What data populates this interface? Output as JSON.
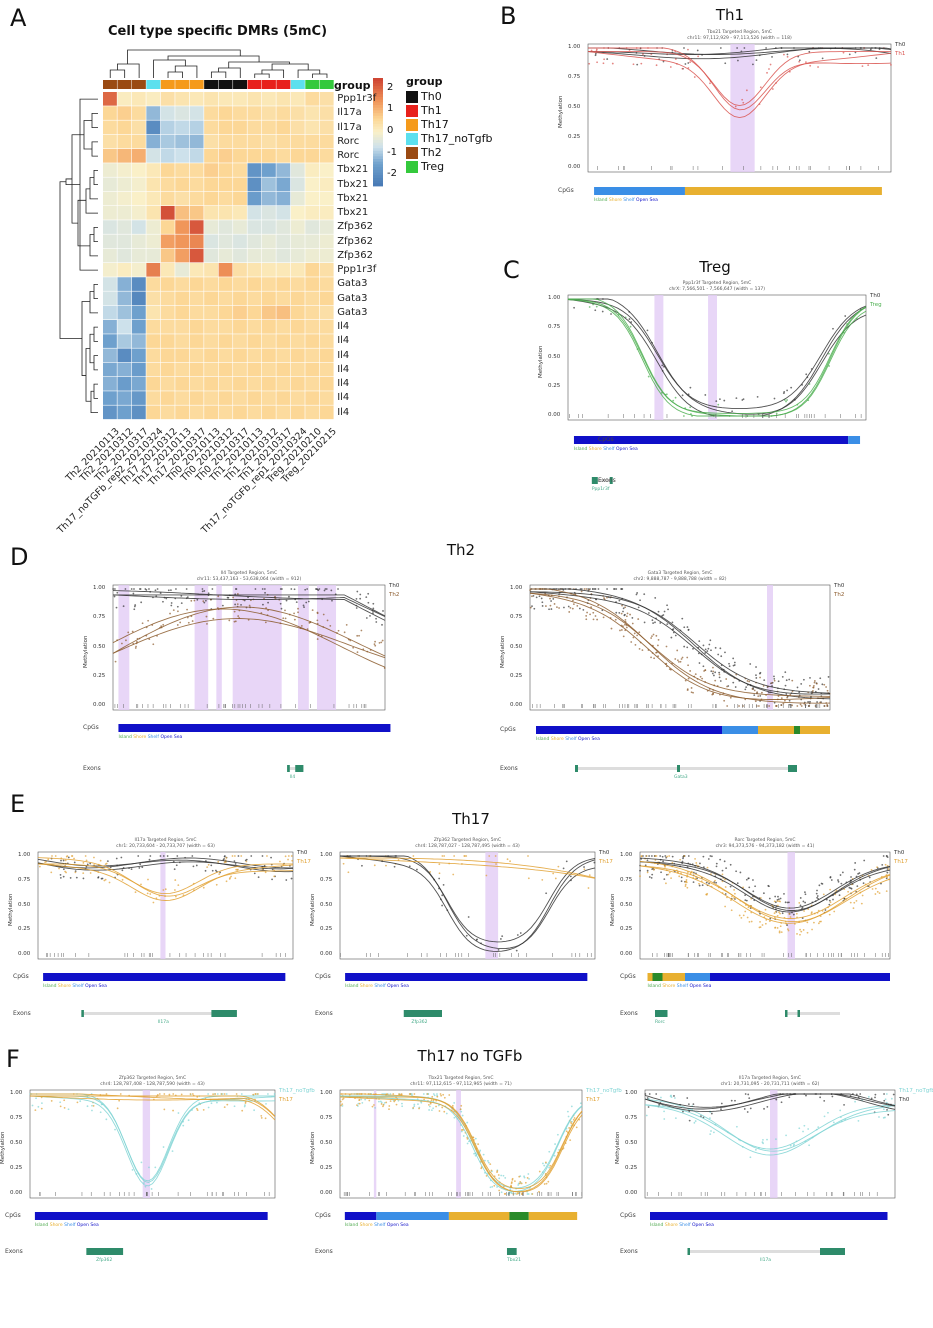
{
  "panel_letters": {
    "A": "A",
    "B": "B",
    "C": "C",
    "D": "D",
    "E": "E",
    "F": "F"
  },
  "section_titles": {
    "th1": "Th1",
    "treg": "Treg",
    "th2": "Th2",
    "th17": "Th17",
    "th17_notgfb": "Th17 no TGFb"
  },
  "chart_data": [
    {
      "type": "heatmap",
      "title": "Cell type specific DMRs (5mC)",
      "rows": [
        "Ppp1r3f",
        "Il17a",
        "Il17a",
        "Rorc",
        "Rorc",
        "Tbx21",
        "Tbx21",
        "Tbx21",
        "Tbx21",
        "Zfp362",
        "Zfp362",
        "Zfp362",
        "Ppp1r3f",
        "Gata3",
        "Gata3",
        "Gata3",
        "Il4",
        "Il4",
        "Il4",
        "Il4",
        "Il4",
        "Il4",
        "Il4"
      ],
      "columns": [
        "Th2_20210113",
        "Th2_20210312",
        "Th2_20210317",
        "Th17_noTGFb_rep2_20210324",
        "Th17_20210312",
        "Th17_20210113",
        "Th17_20210317",
        "Th0_20210113",
        "Th0_20210312",
        "Th0_20210317",
        "Th1_20210113",
        "Th1_20210312",
        "Th1_20210317",
        "Th17_noTGFb_rep1_20210324",
        "Treg_20210210",
        "Treg_20210215"
      ],
      "column_groups": [
        "Th2",
        "Th2",
        "Th2",
        "Th17_noTgfb",
        "Th17",
        "Th17",
        "Th17",
        "Th0",
        "Th0",
        "Th0",
        "Th1",
        "Th1",
        "Th1",
        "Th17_noTgfb",
        "Treg",
        "Treg"
      ],
      "values": [
        [
          2,
          0.1,
          0.2,
          0.1,
          0.4,
          0.3,
          0.2,
          0.3,
          0.2,
          0.2,
          0.3,
          0.2,
          0.3,
          0.2,
          0.5,
          0.4
        ],
        [
          0.6,
          0.7,
          0.5,
          -1.2,
          -0.6,
          -0.5,
          -0.6,
          0.5,
          0.6,
          0.5,
          0.5,
          0.4,
          0.5,
          0.4,
          0.3,
          0.4
        ],
        [
          0.5,
          0.6,
          0.4,
          -2,
          -0.9,
          -0.8,
          -0.9,
          0.5,
          0.6,
          0.6,
          0.5,
          0.5,
          0.6,
          0.4,
          0.3,
          0.4
        ],
        [
          0.4,
          0.5,
          0.5,
          -1.3,
          -1,
          -1.1,
          -1.2,
          0.4,
          0.5,
          0.5,
          0.5,
          0.4,
          0.5,
          0.5,
          0.5,
          0.5
        ],
        [
          0.8,
          1,
          1.1,
          -0.6,
          -0.8,
          -0.7,
          -0.8,
          0.6,
          0.7,
          0.6,
          0.6,
          0.6,
          0.5,
          0.6,
          0.6,
          0.5
        ],
        [
          -0.2,
          -0.1,
          0,
          0.2,
          0.6,
          0.5,
          0.5,
          0.7,
          0.6,
          0.5,
          -1.8,
          -1.5,
          -1.2,
          -0.4,
          0.1,
          0
        ],
        [
          -0.3,
          -0.2,
          -0.1,
          0.3,
          0.5,
          0.6,
          0.5,
          0.6,
          0.6,
          0.6,
          -1.9,
          -1.1,
          -1.4,
          -0.5,
          0,
          0.1
        ],
        [
          -0.2,
          -0.1,
          0,
          0.2,
          0.5,
          0.4,
          0.5,
          0.6,
          0.5,
          0.6,
          -1.6,
          -1.2,
          -1.3,
          -0.3,
          0,
          0
        ],
        [
          -0.2,
          -0.2,
          -0.1,
          0.3,
          2.3,
          0.9,
          0.8,
          0.3,
          0.3,
          0.2,
          -0.6,
          -0.5,
          -0.6,
          0,
          0.1,
          0.1
        ],
        [
          -0.5,
          -0.4,
          -0.6,
          -0.2,
          0.6,
          1.4,
          2.2,
          -0.3,
          -0.4,
          -0.3,
          -0.5,
          -0.5,
          -0.4,
          -0.2,
          -0.4,
          -0.3
        ],
        [
          -0.4,
          -0.4,
          -0.3,
          -0.2,
          1.3,
          1.4,
          1.6,
          -0.5,
          -0.4,
          -0.5,
          -0.4,
          -0.3,
          -0.4,
          -0.3,
          -0.3,
          -0.2
        ],
        [
          -0.3,
          -0.4,
          -0.3,
          -0.3,
          0.8,
          1.3,
          2.2,
          -0.4,
          -0.3,
          -0.4,
          -0.3,
          -0.3,
          -0.4,
          -0.3,
          -0.2,
          -0.2
        ],
        [
          -0.1,
          0.1,
          -0.1,
          1.7,
          0.2,
          -0.3,
          0.2,
          0.3,
          1.5,
          0.4,
          0.3,
          0.2,
          0.2,
          0.2,
          0.6,
          0.4
        ],
        [
          -0.6,
          -1.3,
          -2,
          0.5,
          0.6,
          0.5,
          0.6,
          0.5,
          0.6,
          0.5,
          0.6,
          0.5,
          0.6,
          0.5,
          0.6,
          0.5
        ],
        [
          -0.6,
          -1.2,
          -2.1,
          0.4,
          0.5,
          0.6,
          0.5,
          0.6,
          0.5,
          0.6,
          0.5,
          0.6,
          0.5,
          0.6,
          0.5,
          0.6
        ],
        [
          -0.8,
          -1.1,
          -1.5,
          0.3,
          0.5,
          0.6,
          0.5,
          0.5,
          0.6,
          0.7,
          0.6,
          0.8,
          0.9,
          0.6,
          0.5,
          0.4
        ],
        [
          -1.3,
          -0.7,
          -1.5,
          0.5,
          0.5,
          0.5,
          0.6,
          0.5,
          0.5,
          0.6,
          0.5,
          0.6,
          0.5,
          0.6,
          0.5,
          0.5
        ],
        [
          -1.5,
          -1,
          -1.2,
          0.6,
          0.6,
          0.5,
          0.6,
          0.5,
          0.6,
          0.5,
          0.6,
          0.5,
          0.6,
          0.5,
          0.6,
          0.5
        ],
        [
          -1.2,
          -2,
          -1.5,
          0.5,
          0.6,
          0.6,
          0.5,
          0.6,
          0.5,
          0.6,
          0.5,
          0.6,
          0.5,
          0.6,
          0.5,
          0.6
        ],
        [
          -1.4,
          -1.3,
          -1.6,
          0.5,
          0.6,
          0.5,
          0.6,
          0.5,
          0.6,
          0.5,
          0.6,
          0.5,
          0.6,
          0.5,
          0.6,
          0.5
        ],
        [
          -1.3,
          -1.6,
          -1.4,
          0.6,
          0.5,
          0.6,
          0.5,
          0.6,
          0.5,
          0.6,
          0.5,
          0.6,
          0.5,
          0.6,
          0.5,
          0.6
        ],
        [
          -1.5,
          -1.4,
          -1.7,
          0.5,
          0.6,
          0.5,
          0.6,
          0.5,
          0.6,
          0.5,
          0.6,
          0.5,
          0.6,
          0.5,
          0.6,
          0.5
        ],
        [
          -1.8,
          -1.5,
          -1.9,
          0.6,
          0.5,
          0.6,
          0.5,
          0.6,
          0.5,
          0.6,
          0.5,
          0.6,
          0.5,
          0.6,
          0.5,
          0.6
        ]
      ],
      "colorbar": {
        "ticks": [
          "2",
          "1",
          "0",
          "-1",
          "-2"
        ],
        "range": [
          -2.5,
          2.5
        ]
      },
      "group_legend": {
        "title": "group",
        "annotation_label": "group",
        "items": [
          {
            "name": "Th0",
            "color": "#111111"
          },
          {
            "name": "Th1",
            "color": "#e8211c"
          },
          {
            "name": "Th17",
            "color": "#f59a1b"
          },
          {
            "name": "Th17_noTgfb",
            "color": "#5ce0ee"
          },
          {
            "name": "Th2",
            "color": "#9a4a12"
          },
          {
            "name": "Treg",
            "color": "#34c93c"
          }
        ]
      }
    }
  ],
  "common": {
    "methylation_label": "Methylation",
    "cpg_label": "CpGs",
    "exons_label": "Exons",
    "yticks": [
      "1.00",
      "0.75",
      "0.50",
      "0.25",
      "0.00"
    ],
    "cpg_legend": [
      "Island",
      "Shore",
      "Shelf",
      "Open Sea"
    ]
  },
  "plots": {
    "B": {
      "title": "Tbx21 Targeted Region, 5mC",
      "subtitle": "chr11: 97,112,929 - 97,113,526 (width = 118)",
      "legend": [
        "Th0",
        "Th1"
      ],
      "gene": ""
    },
    "C": {
      "title": "Ppp1r3f Targeted Region, 5mC",
      "subtitle": "chrX: 7,566,501 - 7,566,647 (width = 137)",
      "legend": [
        "Th0",
        "Treg"
      ],
      "gene": "Ppp1r3f"
    },
    "D1": {
      "title": "Il4 Targeted Region, 5mC",
      "subtitle": "chr11: 53,437,163 - 53,638,064 (width = 912)",
      "legend": [
        "Th0",
        "Th2"
      ],
      "gene": "Il4"
    },
    "D2": {
      "title": "Gata3 Targeted Region, 5mC",
      "subtitle": "chr2: 9,888,787 - 9,888,788 (width = 82)",
      "legend": [
        "Th0",
        "Th2"
      ],
      "gene": "Gata3"
    },
    "E1": {
      "title": "Il17a Targeted Region, 5mC",
      "subtitle": "chr1: 20,733,604 - 20,733,707 (width = 63)",
      "legend": [
        "Th0",
        "Th17"
      ],
      "gene": "Il17a"
    },
    "E2": {
      "title": "Zfp362 Targeted Region, 5mC",
      "subtitle": "chr4: 128,787,027 - 128,787,495 (width = 43)",
      "legend": [
        "Th0",
        "Th17"
      ],
      "gene": "Zfp362"
    },
    "E3": {
      "title": "Rorc Targeted Region, 5mC",
      "subtitle": "chr3: 94,373,576 - 94,373,182 (width = 41)",
      "legend": [
        "Th0",
        "Th17"
      ],
      "gene": "Rorc"
    },
    "F1": {
      "title": "Zfp362 Targeted Region, 5mC",
      "subtitle": "chr4: 128,787,408 - 128,787,590 (width = 43)",
      "legend": [
        "Th17_noTgfb",
        "Th17"
      ],
      "gene": "Zfp362"
    },
    "F2": {
      "title": "Tbx21 Targeted Region, 5mC",
      "subtitle": "chr11: 97,112,615 - 97,112,965 (width = 71)",
      "legend": [
        "Th17_noTgfb",
        "Th17"
      ],
      "gene": "Tbx21"
    },
    "F3": {
      "title": "Il17a Targeted Region, 5mC",
      "subtitle": "chr1: 20,731,095 - 20,731,711 (width = 62)",
      "legend": [
        "Th17_noTgfb",
        "Th0"
      ],
      "gene": "Il17a"
    }
  }
}
